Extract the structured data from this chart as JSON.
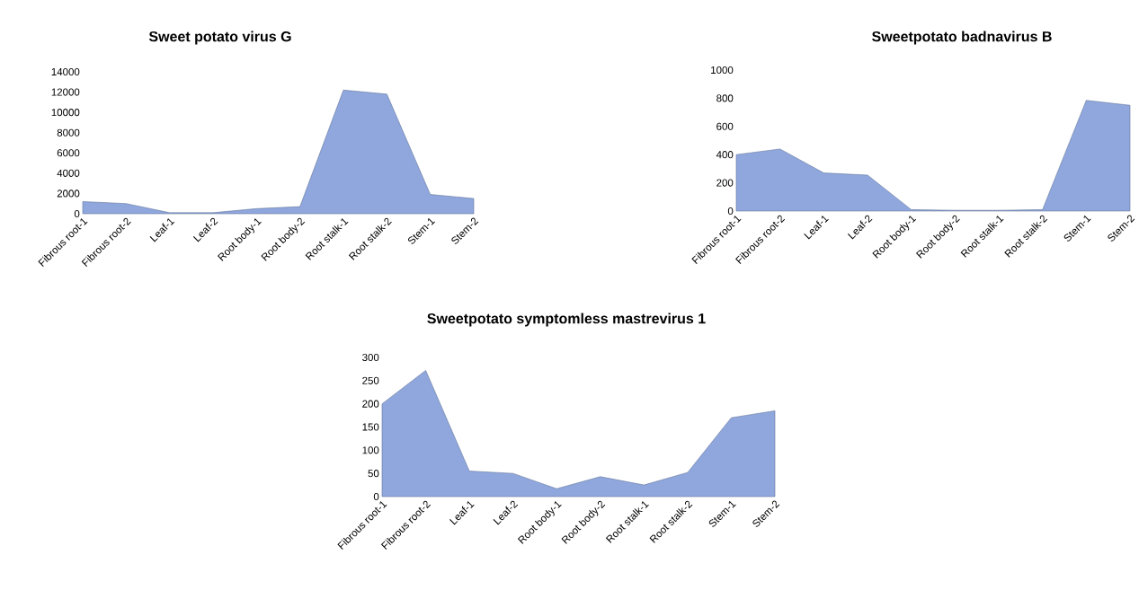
{
  "chart_data": [
    {
      "type": "area",
      "title": "Sweet potato virus G",
      "categories": [
        "Fibrous root-1",
        "Fibrous root-2",
        "Leaf-1",
        "Leaf-2",
        "Root body-1",
        "Root body-2",
        "Root stalk-1",
        "Root stalk-2",
        "Stem-1",
        "Stem-2"
      ],
      "values": [
        1200,
        1000,
        100,
        100,
        500,
        700,
        12200,
        11800,
        1900,
        1500
      ],
      "color": "#8fa7dd",
      "ylim": [
        0,
        14000
      ],
      "yticks": [
        0,
        2000,
        4000,
        6000,
        8000,
        10000,
        12000,
        14000
      ]
    },
    {
      "type": "area",
      "title": "Sweetpotato badnavirus B",
      "categories": [
        "Fibrous root-1",
        "Fibrous root-2",
        "Leaf-1",
        "Leaf-2",
        "Root body-1",
        "Root body-2",
        "Root stalk-1",
        "Root stalk-2",
        "Stem-1",
        "Stem-2"
      ],
      "values": [
        400,
        440,
        270,
        255,
        10,
        5,
        5,
        10,
        785,
        750
      ],
      "color": "#8fa7dd",
      "ylim": [
        0,
        1000
      ],
      "yticks": [
        0,
        200,
        400,
        600,
        800,
        1000
      ]
    },
    {
      "type": "area",
      "title": "Sweetpotato symptomless mastrevirus 1",
      "categories": [
        "Fibrous root-1",
        "Fibrous root-2",
        "Leaf-1",
        "Leaf-2",
        "Root body-1",
        "Root body-2",
        "Root stalk-1",
        "Root stalk-2",
        "Stem-1",
        "Stem-2"
      ],
      "values": [
        200,
        272,
        55,
        50,
        17,
        43,
        25,
        52,
        170,
        185
      ],
      "color": "#8fa7dd",
      "ylim": [
        0,
        300
      ],
      "yticks": [
        0,
        50,
        100,
        150,
        200,
        250,
        300
      ]
    }
  ]
}
